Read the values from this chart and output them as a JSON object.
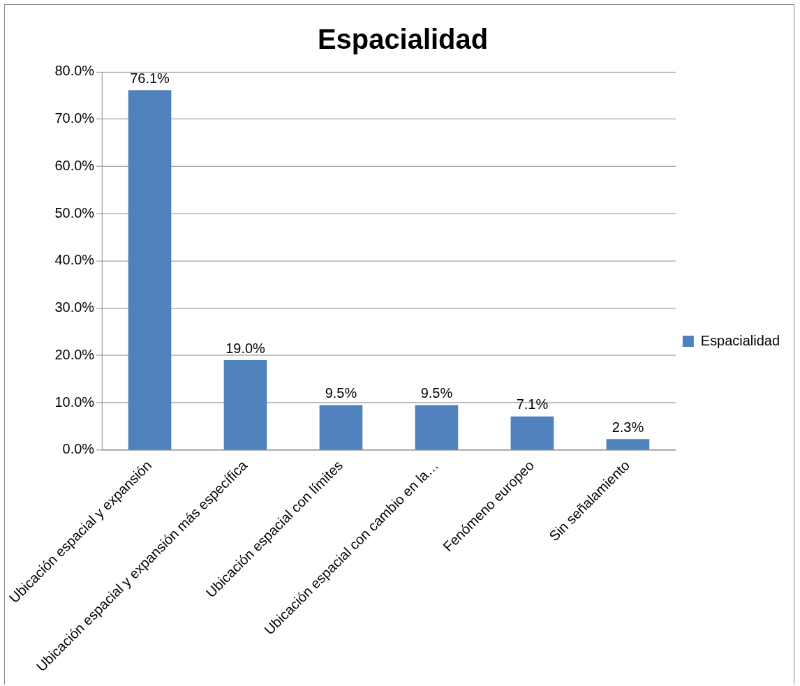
{
  "chart_data": {
    "type": "bar",
    "title": "Espacialidad",
    "categories": [
      "Ubicación espacial y expansión",
      "Ubicación espacial y expansión más específica",
      "Ubicación espacial con límites",
      "Ubicación espacial con cambio en la…",
      "Fenómeno europeo",
      "Sin señalamiento"
    ],
    "series": [
      {
        "name": "Espacialidad",
        "color": "#4f81bd",
        "values": [
          76.1,
          19.0,
          9.5,
          9.5,
          7.1,
          2.3
        ],
        "value_labels": [
          "76.1%",
          "19.0%",
          "9.5%",
          "9.5%",
          "7.1%",
          "2.3%"
        ]
      }
    ],
    "ylim": [
      0,
      80
    ],
    "yticks": [
      {
        "value": 0,
        "label": "0.0%"
      },
      {
        "value": 10,
        "label": "10.0%"
      },
      {
        "value": 20,
        "label": "20.0%"
      },
      {
        "value": 30,
        "label": "30.0%"
      },
      {
        "value": 40,
        "label": "40.0%"
      },
      {
        "value": 50,
        "label": "50.0%"
      },
      {
        "value": 60,
        "label": "60.0%"
      },
      {
        "value": 70,
        "label": "70.0%"
      },
      {
        "value": 80,
        "label": "80.0%"
      }
    ],
    "grid": "y",
    "legend": "right"
  }
}
